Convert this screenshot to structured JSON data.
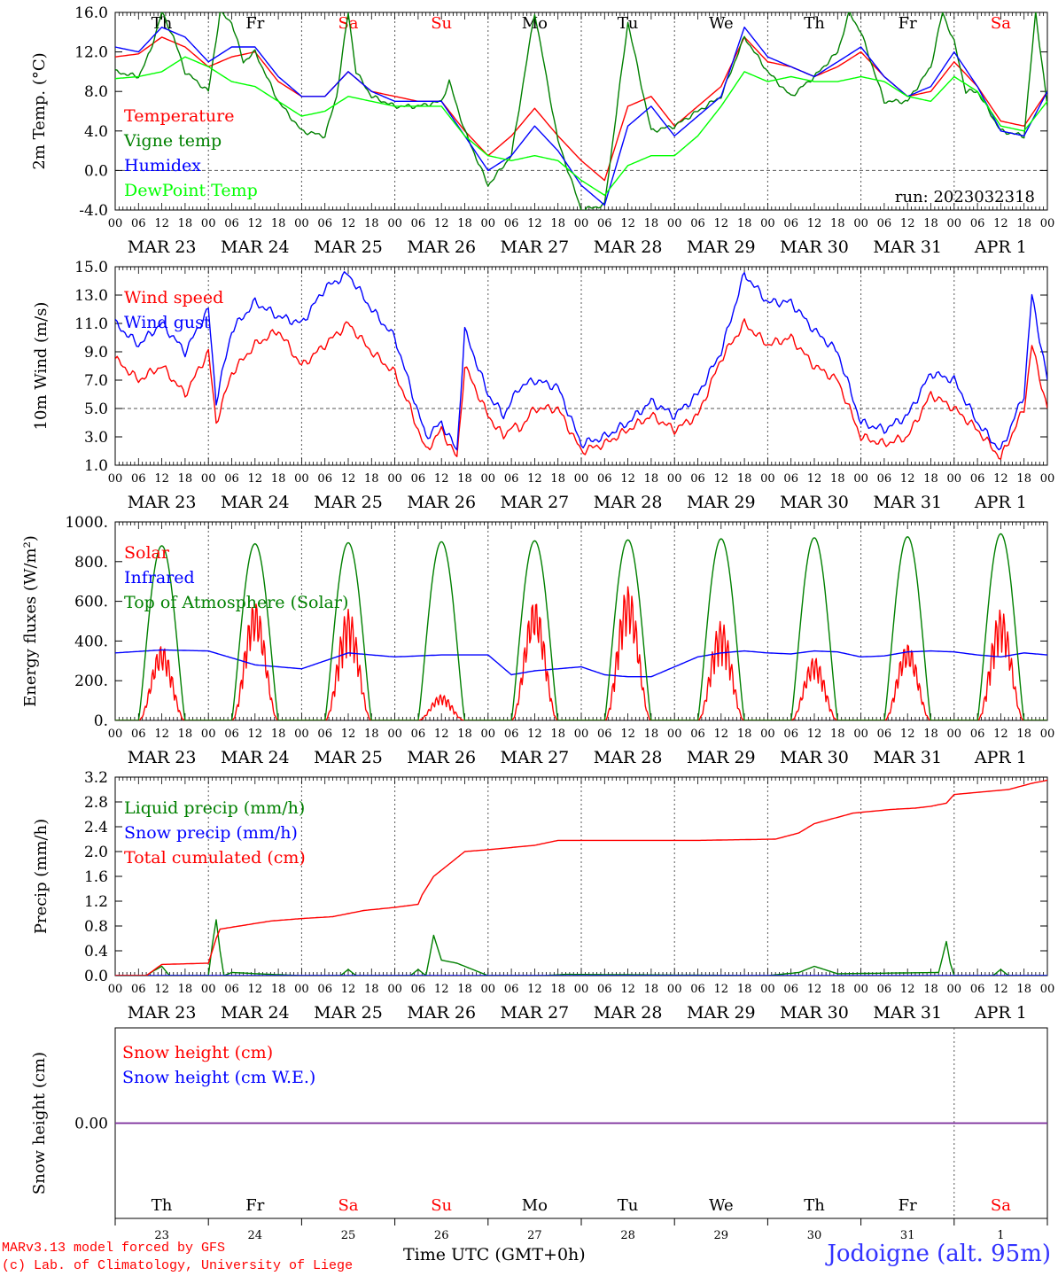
{
  "chart_data": [
    {
      "type": "line",
      "ylabel": "2m Temp. (°C)",
      "ylim": [
        -4.0,
        16.0
      ],
      "ytick_labels": [
        "-4.0",
        "0.0",
        "4.0",
        "8.0",
        "12.0",
        "16.0"
      ],
      "grid": "dashed vertical lines at 00 UTC, dashed horizontal line at 0.0",
      "legend_position": "left",
      "run_label": "run: 2023032318",
      "day_labels": [
        {
          "text": "Th",
          "color": "#000000"
        },
        {
          "text": "Fr",
          "color": "#000000"
        },
        {
          "text": "Sa",
          "color": "#ff0000"
        },
        {
          "text": "Su",
          "color": "#ff0000"
        },
        {
          "text": "Mo",
          "color": "#000000"
        },
        {
          "text": "Tu",
          "color": "#000000"
        },
        {
          "text": "We",
          "color": "#000000"
        },
        {
          "text": "Th",
          "color": "#000000"
        },
        {
          "text": "Fr",
          "color": "#000000"
        },
        {
          "text": "Sa",
          "color": "#ff0000"
        }
      ],
      "series": [
        {
          "name": "Temperature",
          "color": "#ff0000",
          "x_hours": [
            0,
            6,
            12,
            18,
            24,
            30,
            36,
            42,
            48,
            54,
            60,
            66,
            72,
            78,
            84,
            90,
            96,
            102,
            108,
            114,
            120,
            126,
            132,
            138,
            144,
            150,
            156,
            162,
            168,
            174,
            180,
            186,
            192,
            198,
            204,
            210,
            216,
            222,
            228,
            234,
            240
          ],
          "values": [
            11.5,
            11.8,
            13.5,
            12.5,
            10.5,
            11.5,
            12.0,
            9.0,
            7.5,
            7.5,
            10.0,
            8.0,
            7.5,
            7.0,
            7.0,
            4.0,
            1.5,
            3.5,
            6.3,
            3.5,
            1.0,
            -1.0,
            6.5,
            7.5,
            4.5,
            6.5,
            8.5,
            13.5,
            11.0,
            10.5,
            9.5,
            10.5,
            12.0,
            9.5,
            7.5,
            8.0,
            11.0,
            8.5,
            5.0,
            4.5,
            8.0
          ]
        },
        {
          "name": "Vigne temp",
          "color": "#008000",
          "x_hours": [
            0,
            6,
            9,
            12,
            15,
            18,
            24,
            27,
            30,
            33,
            36,
            42,
            48,
            54,
            57,
            60,
            62,
            66,
            72,
            78,
            84,
            86,
            90,
            96,
            102,
            108,
            114,
            120,
            126,
            132,
            138,
            144,
            150,
            156,
            162,
            168,
            174,
            180,
            186,
            189,
            192,
            198,
            204,
            210,
            213,
            216,
            219,
            222,
            228,
            234,
            237,
            240
          ],
          "values": [
            10.0,
            9.5,
            12.0,
            16.0,
            13.5,
            10.0,
            8.0,
            16.0,
            15.0,
            11.0,
            12.0,
            7.0,
            4.0,
            3.5,
            7.5,
            16.0,
            10.0,
            7.5,
            6.5,
            6.5,
            7.0,
            9.0,
            4.0,
            -1.5,
            1.5,
            16.0,
            3.0,
            -4.0,
            -3.5,
            15.0,
            4.0,
            4.5,
            6.0,
            7.5,
            13.5,
            10.0,
            7.5,
            9.5,
            12.0,
            16.0,
            14.0,
            7.0,
            7.0,
            10.5,
            16.0,
            13.0,
            8.0,
            8.0,
            4.0,
            3.5,
            16.0,
            6.5
          ]
        },
        {
          "name": "Humidex",
          "color": "#0000ff",
          "x_hours": [
            0,
            6,
            12,
            18,
            24,
            30,
            36,
            42,
            48,
            54,
            60,
            66,
            72,
            78,
            84,
            90,
            96,
            102,
            108,
            114,
            120,
            126,
            132,
            138,
            144,
            150,
            156,
            162,
            168,
            174,
            180,
            186,
            192,
            198,
            204,
            210,
            216,
            222,
            228,
            234,
            240
          ],
          "values": [
            12.5,
            12.0,
            14.5,
            13.5,
            11.0,
            12.5,
            12.5,
            9.5,
            7.5,
            7.5,
            10.0,
            8.0,
            7.0,
            7.0,
            7.0,
            3.5,
            0.0,
            1.5,
            4.5,
            2.0,
            -1.5,
            -3.5,
            4.5,
            6.5,
            3.5,
            5.5,
            7.5,
            14.5,
            11.5,
            10.5,
            9.5,
            11.0,
            12.5,
            9.5,
            7.5,
            8.5,
            12.0,
            8.5,
            4.0,
            3.5,
            8.0
          ]
        },
        {
          "name": "DewPoint Temp",
          "color": "#00ff00",
          "x_hours": [
            0,
            6,
            12,
            18,
            24,
            30,
            36,
            42,
            48,
            54,
            60,
            66,
            72,
            78,
            84,
            90,
            96,
            102,
            108,
            114,
            120,
            126,
            132,
            138,
            144,
            150,
            156,
            162,
            168,
            174,
            180,
            186,
            192,
            198,
            204,
            210,
            216,
            222,
            228,
            234,
            240
          ],
          "values": [
            9.3,
            9.5,
            10.0,
            11.5,
            10.5,
            9.0,
            8.5,
            7.0,
            5.5,
            6.0,
            7.5,
            7.0,
            6.5,
            6.5,
            6.5,
            3.5,
            1.5,
            1.0,
            1.5,
            1.0,
            -1.0,
            -2.5,
            0.5,
            1.5,
            1.5,
            3.5,
            6.5,
            10.0,
            9.0,
            9.5,
            9.0,
            9.0,
            9.5,
            9.0,
            7.5,
            7.0,
            9.5,
            8.0,
            4.5,
            4.0,
            7.0
          ]
        }
      ]
    },
    {
      "type": "line",
      "ylabel": "10m Wind (m/s)",
      "ylim": [
        1.0,
        15.0
      ],
      "ytick_labels": [
        "1.0",
        "3.0",
        "5.0",
        "7.0",
        "9.0",
        "11.0",
        "13.0",
        "15.0"
      ],
      "grid": "dashed vertical lines at 00 UTC, dashed horizontal line at 5.0",
      "legend_position": "left",
      "series": [
        {
          "name": "Wind speed",
          "color": "#ff0000",
          "x_hours": [
            0,
            6,
            12,
            18,
            24,
            26,
            30,
            36,
            42,
            48,
            54,
            60,
            66,
            72,
            76,
            80,
            84,
            88,
            90,
            96,
            100,
            102,
            104,
            108,
            114,
            120,
            126,
            132,
            138,
            144,
            150,
            156,
            162,
            168,
            174,
            180,
            186,
            192,
            198,
            204,
            210,
            216,
            222,
            228,
            234,
            236,
            240
          ],
          "values": [
            8.5,
            7.0,
            8.0,
            6.0,
            9.0,
            4.0,
            7.5,
            9.5,
            10.5,
            8.0,
            9.5,
            11.0,
            9.0,
            7.5,
            5.0,
            2.0,
            3.5,
            1.5,
            8.0,
            4.5,
            3.0,
            3.8,
            3.5,
            5.0,
            5.0,
            2.0,
            2.5,
            3.5,
            4.5,
            3.5,
            4.5,
            8.5,
            11.0,
            9.5,
            10.0,
            8.0,
            7.0,
            3.0,
            2.5,
            3.0,
            6.0,
            5.0,
            3.5,
            1.5,
            5.0,
            9.5,
            5.0
          ]
        },
        {
          "name": "Wind gust",
          "color": "#0000ff",
          "x_hours": [
            0,
            6,
            12,
            18,
            24,
            26,
            30,
            36,
            42,
            48,
            54,
            60,
            66,
            72,
            76,
            80,
            84,
            88,
            90,
            96,
            100,
            102,
            104,
            108,
            114,
            120,
            126,
            132,
            138,
            144,
            150,
            156,
            162,
            168,
            174,
            180,
            186,
            192,
            198,
            204,
            210,
            216,
            222,
            228,
            234,
            236,
            240
          ],
          "values": [
            11.0,
            9.5,
            11.0,
            9.0,
            12.0,
            5.5,
            10.5,
            12.5,
            11.5,
            11.0,
            13.5,
            14.5,
            12.0,
            10.0,
            6.5,
            3.0,
            4.0,
            2.0,
            10.5,
            6.0,
            4.5,
            5.5,
            6.5,
            7.0,
            6.5,
            2.5,
            3.0,
            4.0,
            5.5,
            4.5,
            6.0,
            9.0,
            14.5,
            12.5,
            12.5,
            10.5,
            9.0,
            4.0,
            3.5,
            4.5,
            7.5,
            7.0,
            4.0,
            2.0,
            6.0,
            13.0,
            7.0
          ]
        }
      ]
    },
    {
      "type": "line",
      "ylabel": "Energy fluxes (W/m²)",
      "ylim": [
        0,
        1000
      ],
      "ytick_labels": [
        "0.",
        "200.",
        "400.",
        "600.",
        "800.",
        "1000."
      ],
      "grid": "dashed vertical lines at 00 UTC",
      "legend_position": "left",
      "series": [
        {
          "name": "Solar",
          "color": "#ff0000",
          "day_peaks": [
            380,
            600,
            560,
            130,
            610,
            680,
            500,
            320,
            390,
            560
          ]
        },
        {
          "name": "Infrared",
          "color": "#0000ff",
          "x_hours": [
            0,
            12,
            24,
            36,
            48,
            60,
            72,
            84,
            96,
            102,
            108,
            114,
            120,
            126,
            132,
            138,
            144,
            150,
            156,
            162,
            168,
            174,
            180,
            186,
            192,
            198,
            204,
            210,
            216,
            222,
            228,
            234,
            240
          ],
          "values": [
            340,
            355,
            350,
            280,
            260,
            340,
            320,
            330,
            330,
            230,
            250,
            260,
            270,
            230,
            220,
            220,
            270,
            320,
            340,
            350,
            340,
            335,
            350,
            345,
            320,
            325,
            345,
            350,
            345,
            330,
            320,
            340,
            330
          ]
        },
        {
          "name": "Top of Atmosphere (Solar)",
          "color": "#008000",
          "day_peaks": [
            880,
            890,
            895,
            900,
            905,
            910,
            915,
            920,
            925,
            940
          ]
        }
      ]
    },
    {
      "type": "line",
      "ylabel": "Precip (mm/h)",
      "ylim": [
        0.0,
        3.2
      ],
      "ytick_labels": [
        "0.0",
        "0.4",
        "0.8",
        "1.2",
        "1.6",
        "2.0",
        "2.4",
        "2.8",
        "3.2"
      ],
      "grid": "dashed vertical lines at 00 UTC",
      "legend_position": "left",
      "series": [
        {
          "name": "Liquid precip (mm/h)",
          "color": "#008000",
          "x_hours": [
            0,
            8,
            10,
            12,
            14,
            24,
            25,
            26,
            27,
            28,
            30,
            40,
            48,
            58,
            60,
            62,
            72,
            76,
            78,
            80,
            82,
            84,
            88,
            90,
            96,
            110,
            116,
            168,
            176,
            180,
            186,
            212,
            214,
            215,
            216,
            218,
            226,
            228,
            230,
            240
          ],
          "values": [
            0,
            0,
            0.08,
            0.15,
            0,
            0,
            0.5,
            0.9,
            0.4,
            0,
            0.05,
            0.02,
            0,
            0,
            0.1,
            0,
            0,
            0,
            0.1,
            0,
            0.65,
            0.25,
            0.2,
            0.15,
            0,
            0,
            0.02,
            0,
            0.05,
            0.15,
            0.03,
            0.05,
            0.55,
            0.2,
            0,
            0,
            0,
            0.1,
            0,
            0
          ]
        },
        {
          "name": "Snow precip (mm/h)",
          "color": "#0000ff",
          "x_hours": [
            0,
            240
          ],
          "values": [
            0,
            0
          ]
        },
        {
          "name": "Total cumulated (cm)",
          "color": "#ff0000",
          "x_hours": [
            0,
            8,
            12,
            24,
            26,
            27,
            30,
            40,
            48,
            56,
            60,
            64,
            72,
            78,
            79,
            82,
            86,
            90,
            96,
            108,
            114,
            150,
            170,
            176,
            180,
            190,
            200,
            206,
            210,
            214,
            216,
            230,
            236,
            240
          ],
          "values": [
            0,
            0,
            0.18,
            0.2,
            0.6,
            0.75,
            0.78,
            0.88,
            0.92,
            0.95,
            1.0,
            1.05,
            1.1,
            1.15,
            1.3,
            1.6,
            1.8,
            2.0,
            2.03,
            2.1,
            2.18,
            2.18,
            2.2,
            2.3,
            2.45,
            2.62,
            2.68,
            2.7,
            2.73,
            2.78,
            2.92,
            3.0,
            3.1,
            3.15
          ]
        }
      ]
    },
    {
      "type": "line",
      "ylabel": "Snow height (cm)",
      "ytick_labels": [
        "0.00"
      ],
      "grid": "dashed vertical line before APR 1",
      "legend_position": "left",
      "series": [
        {
          "name": "Snow height (cm)",
          "color": "#ff0000",
          "x_hours": [
            0,
            240
          ],
          "values": [
            0,
            0
          ]
        },
        {
          "name": "Snow height (cm W.E.)",
          "color": "#0000ff",
          "x_hours": [
            0,
            240
          ],
          "values": [
            0,
            0
          ]
        }
      ],
      "day_labels": [
        {
          "text": "Th",
          "date": "23",
          "color": "#000000"
        },
        {
          "text": "Fr",
          "date": "24",
          "color": "#000000"
        },
        {
          "text": "Sa",
          "date": "25",
          "color": "#ff0000"
        },
        {
          "text": "Su",
          "date": "26",
          "color": "#ff0000"
        },
        {
          "text": "Mo",
          "date": "27",
          "color": "#000000"
        },
        {
          "text": "Tu",
          "date": "28",
          "color": "#000000"
        },
        {
          "text": "We",
          "date": "29",
          "color": "#000000"
        },
        {
          "text": "Th",
          "date": "30",
          "color": "#000000"
        },
        {
          "text": "Fr",
          "date": "31",
          "color": "#000000"
        },
        {
          "text": "Sa",
          "date": "1",
          "color": "#ff0000"
        }
      ]
    }
  ],
  "x_axis": {
    "hour_labels": [
      "00",
      "06",
      "12",
      "18"
    ],
    "date_labels": [
      "MAR 23",
      "MAR 24",
      "MAR 25",
      "MAR 26",
      "MAR 27",
      "MAR 28",
      "MAR 29",
      "MAR 30",
      "MAR 31",
      "APR  1"
    ],
    "title": "Time UTC (GMT+0h)"
  },
  "footer": {
    "credit_line1": "MARv3.13 model forced by GFS",
    "credit_line2": "(c) Lab. of Climatology, University of Liege",
    "station": "Jodoigne (alt. 95m)"
  }
}
